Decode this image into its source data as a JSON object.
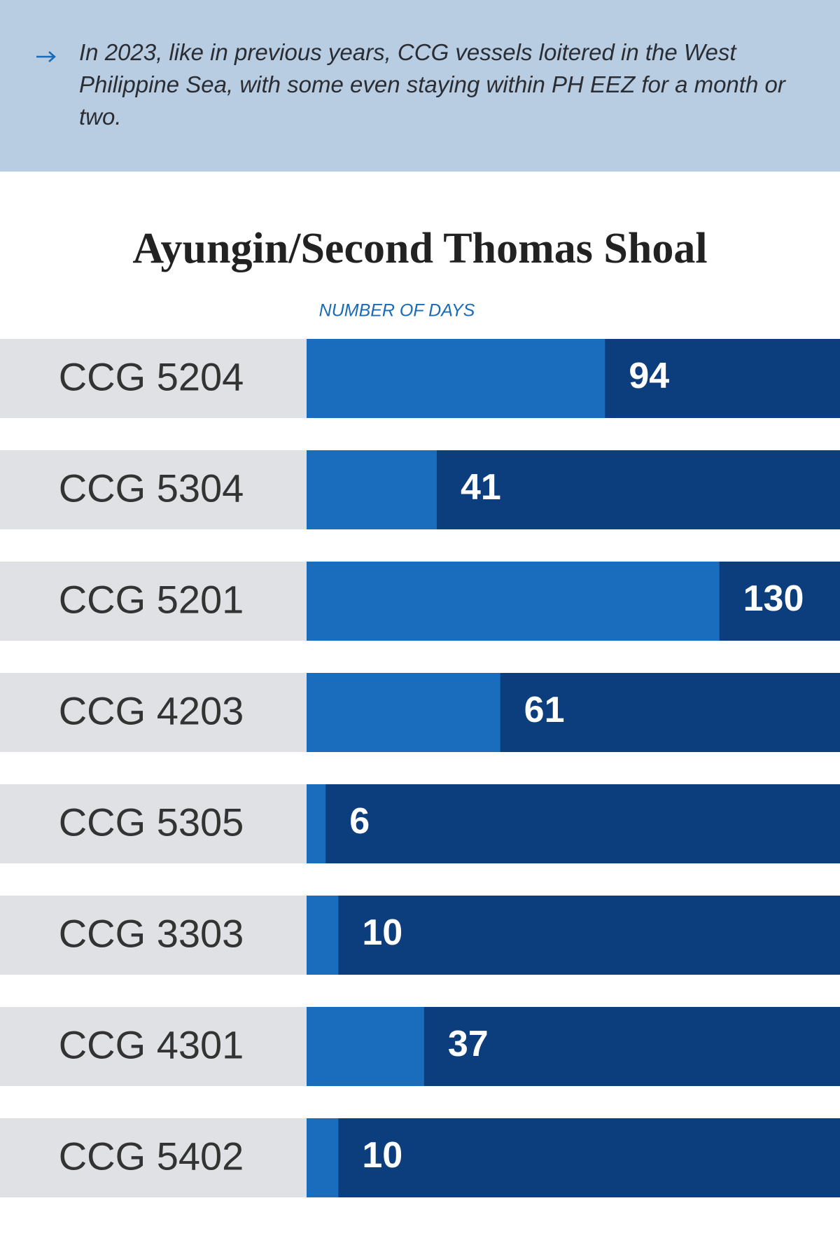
{
  "chart_data": {
    "type": "hbar",
    "annotation": "In 2023, like in previous years, CCG vessels loitered in the West Philippine Sea, with some even staying within PH EEZ for a month or two.",
    "title": "Ayungin/Second Thomas Shoal",
    "x_label": "NUMBER OF DAYS",
    "categories": [
      "CCG 5204",
      "CCG 5304",
      "CCG 5201",
      "CCG 4203",
      "CCG 5305",
      "CCG 3303",
      "CCG 4301",
      "CCG 5402"
    ],
    "values": [
      94,
      41,
      130,
      61,
      6,
      10,
      37,
      10
    ],
    "color": "#1a6dbd",
    "track_color": "#0c3d7d",
    "xlim": [
      0,
      168
    ]
  }
}
